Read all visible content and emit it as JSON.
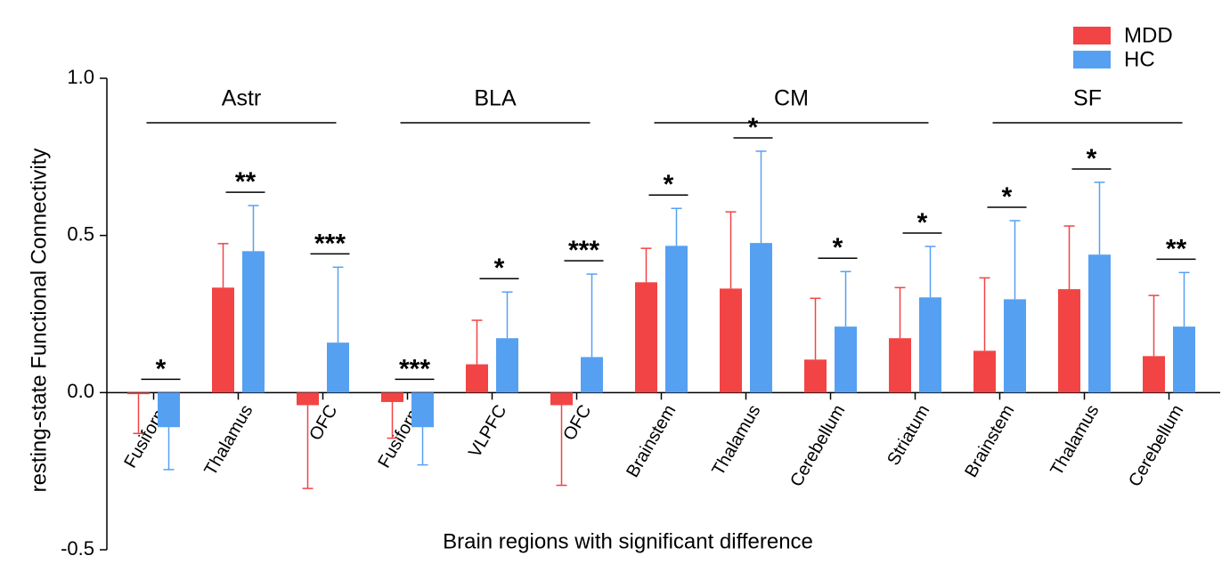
{
  "chart_data": {
    "type": "bar",
    "y_label": "resting-state Functional Connectivity",
    "x_label": "Brain regions with significant difference",
    "categories": [
      "Fusiform",
      "Thalamus",
      "OFC",
      "Fusiform",
      "VLPFC",
      "OFC",
      "Brainstem",
      "Thalamus",
      "Cerebellum",
      "Striatum",
      "Brainstem",
      "Thalamus",
      "Cerebellum"
    ],
    "group_labels": [
      "Astr",
      "Astr",
      "Astr",
      "BLA",
      "BLA",
      "BLA",
      "CM",
      "CM",
      "CM",
      "CM",
      "SF",
      "SF",
      "SF"
    ],
    "significance": [
      "*",
      "**",
      "***",
      "***",
      "*",
      "***",
      "*",
      "*",
      "*",
      "*",
      "*",
      "*",
      "**"
    ],
    "series": [
      {
        "name": "MDD",
        "color": "#f24444",
        "values": [
          -0.005,
          0.334,
          -0.04,
          -0.03,
          0.09,
          -0.04,
          0.351,
          0.331,
          0.105,
          0.173,
          0.133,
          0.329,
          0.116
        ],
        "errors": [
          0.125,
          0.14,
          0.265,
          0.115,
          0.14,
          0.255,
          0.108,
          0.244,
          0.195,
          0.161,
          0.232,
          0.201,
          0.193
        ]
      },
      {
        "name": "HC",
        "color": "#56a0f2",
        "values": [
          -0.11,
          0.45,
          0.159,
          -0.11,
          0.173,
          0.113,
          0.467,
          0.476,
          0.21,
          0.303,
          0.297,
          0.439,
          0.21
        ],
        "errors": [
          0.135,
          0.145,
          0.24,
          0.12,
          0.147,
          0.264,
          0.119,
          0.292,
          0.175,
          0.162,
          0.25,
          0.23,
          0.172
        ]
      }
    ],
    "ylim": [
      -0.5,
      1.0
    ],
    "yticks": [
      {
        "value": 1.0,
        "label": "1.0"
      },
      0.5,
      {
        "value": 0.0,
        "label": "0.0"
      },
      -0.5
    ],
    "legend": "top-right",
    "grid": false
  }
}
